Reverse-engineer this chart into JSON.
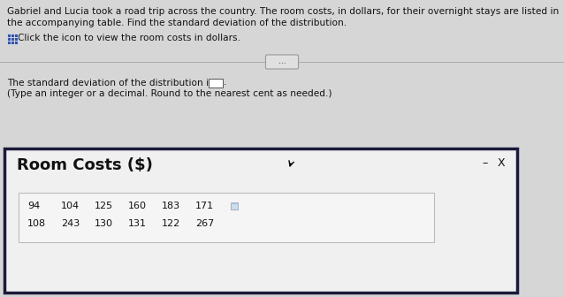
{
  "main_text_line1": "Gabriel and Lucia took a road trip across the country. The room costs, in dollars, for their overnight stays are listed in",
  "main_text_line2": "the accompanying table. Find the standard deviation of the distribution.",
  "icon_text": "Click the icon to view the room costs in dollars.",
  "answer_line1": "The standard deviation of the distribution is $",
  "answer_line2": "(Type an integer or a decimal. Round to the nearest cent as needed.)",
  "popup_title": "Room Costs ($)",
  "table_row1": [
    "94",
    "104",
    "125",
    "160",
    "183",
    "171"
  ],
  "table_row2": [
    "108",
    "243",
    "130",
    "131",
    "122",
    "267"
  ],
  "main_bg": "#d6d6d6",
  "popup_bg": "#f0f0f0",
  "popup_border": "#1a1a3a",
  "table_bg": "#f5f5f5",
  "table_border": "#bbbbbb",
  "text_color": "#111111",
  "separator_color": "#aaaaaa",
  "btn_bg": "#e0e0e0",
  "btn_border": "#999999",
  "icon_color": "#3355aa"
}
